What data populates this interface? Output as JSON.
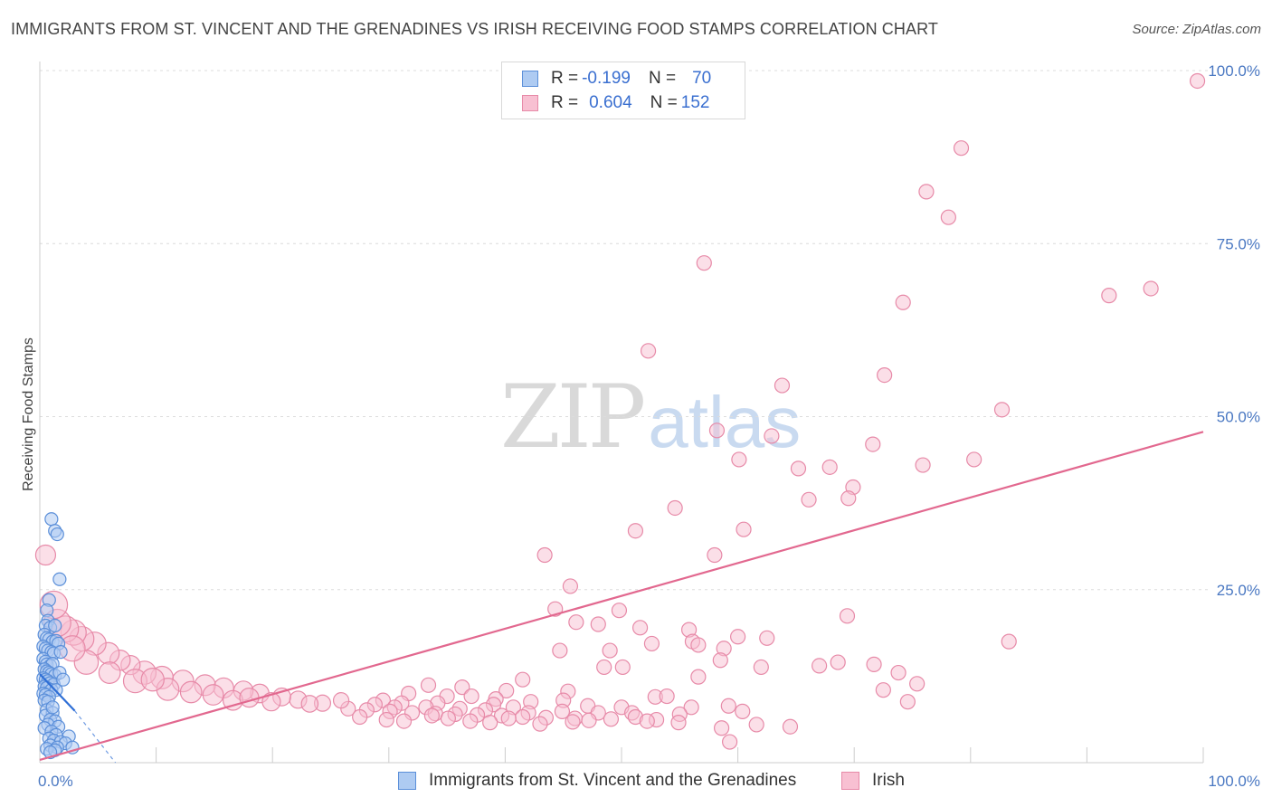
{
  "title": "IMMIGRANTS FROM ST. VINCENT AND THE GRENADINES VS IRISH RECEIVING FOOD STAMPS CORRELATION CHART",
  "source": "Source: ZipAtlas.com",
  "watermark": {
    "zip": "ZIP",
    "atlas": "atlas"
  },
  "legend": {
    "r_label": "R =",
    "n_label": "N =",
    "series": [
      {
        "r": "-0.199",
        "n": "70",
        "fill": "#aecbf2",
        "stroke": "#5b8fd9"
      },
      {
        "r": "0.604",
        "n": "152",
        "fill": "#f8c0d2",
        "stroke": "#e78aa8"
      }
    ]
  },
  "chart_data": {
    "type": "scatter",
    "ylabel": "Receiving Food Stamps",
    "xlim": [
      0,
      100
    ],
    "ylim": [
      0,
      100
    ],
    "x_tick_labels": [
      {
        "value": 0,
        "label": "0.0%"
      },
      {
        "value": 100,
        "label": "100.0%"
      }
    ],
    "y_tick_labels": [
      {
        "value": 25,
        "label": "25.0%"
      },
      {
        "value": 50,
        "label": "50.0%"
      },
      {
        "value": 75,
        "label": "75.0%"
      },
      {
        "value": 100,
        "label": "100.0%"
      }
    ],
    "gridlines_y": [
      25,
      50,
      75,
      100
    ],
    "x_minor_ticks": [
      10,
      20,
      30,
      40,
      50,
      60,
      70,
      80,
      90,
      100
    ],
    "colors": {
      "blue_fill": "#aecbf2",
      "blue_stroke": "#5b8fd9",
      "blue_line": "#2f6fd6",
      "pink_fill": "#f8c0d2",
      "pink_stroke": "#e78aa8",
      "pink_line": "#e2688f"
    },
    "series": [
      {
        "name": "Immigrants from St. Vincent and the Grenadines",
        "color": "blue",
        "points": [
          [
            1.0,
            35.2
          ],
          [
            1.3,
            33.5
          ],
          [
            1.5,
            33.0
          ],
          [
            1.7,
            26.5
          ],
          [
            0.8,
            23.5
          ],
          [
            0.6,
            22.0
          ],
          [
            0.7,
            20.5
          ],
          [
            0.5,
            19.8
          ],
          [
            0.9,
            19.5
          ],
          [
            1.3,
            19.8
          ],
          [
            0.4,
            18.5
          ],
          [
            0.6,
            18.0
          ],
          [
            0.8,
            17.8
          ],
          [
            1.1,
            17.5
          ],
          [
            1.4,
            17.6
          ],
          [
            1.6,
            17.2
          ],
          [
            0.3,
            16.8
          ],
          [
            0.5,
            16.5
          ],
          [
            0.7,
            16.2
          ],
          [
            1.0,
            16.0
          ],
          [
            1.2,
            15.8
          ],
          [
            1.8,
            16.0
          ],
          [
            0.3,
            15.0
          ],
          [
            0.5,
            14.6
          ],
          [
            0.6,
            14.2
          ],
          [
            0.9,
            14.0
          ],
          [
            1.1,
            14.3
          ],
          [
            0.4,
            13.5
          ],
          [
            0.6,
            13.2
          ],
          [
            0.8,
            13.0
          ],
          [
            1.0,
            12.8
          ],
          [
            1.3,
            12.6
          ],
          [
            1.7,
            13.0
          ],
          [
            0.3,
            12.2
          ],
          [
            0.5,
            12.0
          ],
          [
            0.7,
            11.8
          ],
          [
            0.9,
            11.5
          ],
          [
            1.2,
            11.3
          ],
          [
            0.4,
            11.0
          ],
          [
            0.6,
            10.8
          ],
          [
            1.0,
            10.5
          ],
          [
            1.4,
            10.5
          ],
          [
            0.3,
            10.0
          ],
          [
            0.5,
            9.8
          ],
          [
            0.8,
            9.5
          ],
          [
            0.4,
            9.0
          ],
          [
            0.7,
            8.8
          ],
          [
            0.6,
            7.6
          ],
          [
            1.1,
            7.2
          ],
          [
            0.5,
            6.8
          ],
          [
            0.9,
            6.2
          ],
          [
            1.3,
            6.0
          ],
          [
            0.7,
            5.5
          ],
          [
            1.6,
            5.2
          ],
          [
            0.4,
            5.0
          ],
          [
            1.0,
            4.5
          ],
          [
            1.4,
            4.0
          ],
          [
            2.5,
            3.8
          ],
          [
            0.8,
            3.5
          ],
          [
            1.2,
            3.2
          ],
          [
            1.8,
            3.0
          ],
          [
            2.2,
            2.8
          ],
          [
            0.9,
            2.5
          ],
          [
            1.5,
            2.2
          ],
          [
            2.8,
            2.2
          ],
          [
            0.6,
            2.0
          ],
          [
            1.3,
            1.8
          ],
          [
            0.9,
            1.5
          ],
          [
            1.1,
            8.0
          ],
          [
            2.0,
            12.0
          ]
        ]
      },
      {
        "name": "Irish",
        "color": "pink",
        "points": [
          [
            99.5,
            98.5
          ],
          [
            79.2,
            88.8
          ],
          [
            76.2,
            82.5
          ],
          [
            78.1,
            78.8
          ],
          [
            57.1,
            72.2
          ],
          [
            74.2,
            66.5
          ],
          [
            91.9,
            67.5
          ],
          [
            95.5,
            68.5
          ],
          [
            52.3,
            59.5
          ],
          [
            72.6,
            56.0
          ],
          [
            63.8,
            54.5
          ],
          [
            82.7,
            51.0
          ],
          [
            58.2,
            48.0
          ],
          [
            62.9,
            47.2
          ],
          [
            71.6,
            46.0
          ],
          [
            60.1,
            43.8
          ],
          [
            65.2,
            42.5
          ],
          [
            67.9,
            42.7
          ],
          [
            75.9,
            43.0
          ],
          [
            80.3,
            43.8
          ],
          [
            69.9,
            39.8
          ],
          [
            66.1,
            38.0
          ],
          [
            69.5,
            38.2
          ],
          [
            54.6,
            36.8
          ],
          [
            51.2,
            33.5
          ],
          [
            60.5,
            33.7
          ],
          [
            58.0,
            30.0
          ],
          [
            43.4,
            30.0
          ],
          [
            45.6,
            25.5
          ],
          [
            44.3,
            22.2
          ],
          [
            49.8,
            22.0
          ],
          [
            46.1,
            20.3
          ],
          [
            48.0,
            20.0
          ],
          [
            51.6,
            19.5
          ],
          [
            55.8,
            19.2
          ],
          [
            60.0,
            18.2
          ],
          [
            62.5,
            18.0
          ],
          [
            69.4,
            21.2
          ],
          [
            83.3,
            17.5
          ],
          [
            52.6,
            17.2
          ],
          [
            56.1,
            17.5
          ],
          [
            56.6,
            17.0
          ],
          [
            58.8,
            16.5
          ],
          [
            44.7,
            16.2
          ],
          [
            49.0,
            16.2
          ],
          [
            58.5,
            14.8
          ],
          [
            62.0,
            13.8
          ],
          [
            67.0,
            14.0
          ],
          [
            68.6,
            14.5
          ],
          [
            71.7,
            14.2
          ],
          [
            48.5,
            13.8
          ],
          [
            50.1,
            13.8
          ],
          [
            73.8,
            13.0
          ],
          [
            41.5,
            12.0
          ],
          [
            56.6,
            12.4
          ],
          [
            72.5,
            10.5
          ],
          [
            75.4,
            11.4
          ],
          [
            33.4,
            11.2
          ],
          [
            36.3,
            10.9
          ],
          [
            40.1,
            10.4
          ],
          [
            45.4,
            10.3
          ],
          [
            31.7,
            10.0
          ],
          [
            35.0,
            9.6
          ],
          [
            37.1,
            9.6
          ],
          [
            39.2,
            9.2
          ],
          [
            45.0,
            9.0
          ],
          [
            52.9,
            9.5
          ],
          [
            53.9,
            9.6
          ],
          [
            74.6,
            8.8
          ],
          [
            29.5,
            9.0
          ],
          [
            31.1,
            8.6
          ],
          [
            34.2,
            8.6
          ],
          [
            39.0,
            8.4
          ],
          [
            42.2,
            8.8
          ],
          [
            47.1,
            8.2
          ],
          [
            50.0,
            8.0
          ],
          [
            56.0,
            8.0
          ],
          [
            59.2,
            8.2
          ],
          [
            28.8,
            8.4
          ],
          [
            30.5,
            8.0
          ],
          [
            33.2,
            8.0
          ],
          [
            36.1,
            7.8
          ],
          [
            38.3,
            7.6
          ],
          [
            40.7,
            8.0
          ],
          [
            42.0,
            7.2
          ],
          [
            44.9,
            7.4
          ],
          [
            48.0,
            7.2
          ],
          [
            50.9,
            7.2
          ],
          [
            55.0,
            7.0
          ],
          [
            60.4,
            7.4
          ],
          [
            26.5,
            7.8
          ],
          [
            28.1,
            7.6
          ],
          [
            30.1,
            7.4
          ],
          [
            32.0,
            7.2
          ],
          [
            34.0,
            7.1
          ],
          [
            35.7,
            7.0
          ],
          [
            37.6,
            6.9
          ],
          [
            39.7,
            6.8
          ],
          [
            41.5,
            6.6
          ],
          [
            43.5,
            6.5
          ],
          [
            46.0,
            6.4
          ],
          [
            49.1,
            6.3
          ],
          [
            51.2,
            6.6
          ],
          [
            53.0,
            6.2
          ],
          [
            54.9,
            5.8
          ],
          [
            61.6,
            5.5
          ],
          [
            64.5,
            5.2
          ],
          [
            27.5,
            6.6
          ],
          [
            29.8,
            6.2
          ],
          [
            31.3,
            6.0
          ],
          [
            33.7,
            6.8
          ],
          [
            35.1,
            6.4
          ],
          [
            37.0,
            6.0
          ],
          [
            40.3,
            6.4
          ],
          [
            43.0,
            5.6
          ],
          [
            45.8,
            5.9
          ],
          [
            47.2,
            6.1
          ],
          [
            52.2,
            6.0
          ],
          [
            38.7,
            5.8
          ],
          [
            58.6,
            5.0
          ],
          [
            59.3,
            3.0
          ],
          [
            24.3,
            8.6
          ],
          [
            22.2,
            9.1
          ],
          [
            20.8,
            9.5
          ],
          [
            18.9,
            10.0
          ],
          [
            17.5,
            10.4
          ],
          [
            15.8,
            10.8
          ],
          [
            14.2,
            11.2
          ],
          [
            12.3,
            11.8
          ],
          [
            10.5,
            12.3
          ],
          [
            9.0,
            13.0
          ],
          [
            7.8,
            14.1
          ],
          [
            6.9,
            14.8
          ],
          [
            5.9,
            15.8
          ],
          [
            4.7,
            17.2
          ],
          [
            3.6,
            17.9
          ],
          [
            2.9,
            18.8
          ],
          [
            2.2,
            19.3
          ],
          [
            1.5,
            20.2
          ],
          [
            1.2,
            22.8
          ],
          [
            0.5,
            30.0
          ],
          [
            13.0,
            10.2
          ],
          [
            16.6,
            9.0
          ],
          [
            19.9,
            8.8
          ],
          [
            23.2,
            8.5
          ],
          [
            25.9,
            9.0
          ],
          [
            11.0,
            10.6
          ],
          [
            8.2,
            11.8
          ],
          [
            6.0,
            13.0
          ],
          [
            4.0,
            14.5
          ],
          [
            2.8,
            16.5
          ],
          [
            9.7,
            12.0
          ],
          [
            14.9,
            9.8
          ],
          [
            18.0,
            9.4
          ]
        ]
      }
    ],
    "trend_lines": [
      {
        "series": "Immigrants from St. Vincent and the Grenadines",
        "solid": [
          [
            0,
            12.8
          ],
          [
            3.0,
            7.5
          ]
        ],
        "dashed": [
          [
            3.0,
            7.5
          ],
          [
            6.5,
            0.0
          ]
        ]
      },
      {
        "series": "Irish",
        "solid": [
          [
            0,
            0.4
          ],
          [
            100,
            47.8
          ]
        ]
      }
    ]
  }
}
